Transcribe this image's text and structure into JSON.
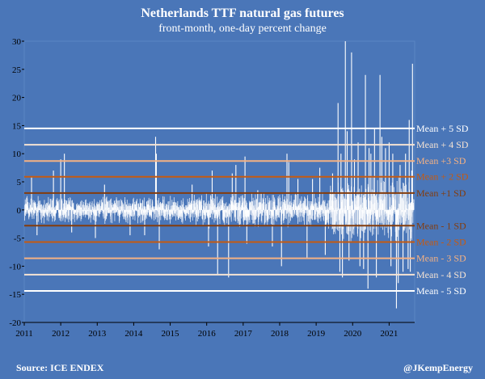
{
  "chart_data": {
    "type": "bar",
    "title": "Netherlands TTF natural gas futures",
    "subtitle": "front-month, one-day percent change",
    "xlabel": "",
    "ylabel": "",
    "xlim": [
      2011.0,
      2021.7
    ],
    "ylim": [
      -20,
      30
    ],
    "yticks": [
      -20,
      -15,
      -10,
      -5,
      0,
      5,
      10,
      15,
      20,
      25,
      30
    ],
    "xticks": [
      "2011",
      "2012",
      "2013",
      "2014",
      "2015",
      "2016",
      "2017",
      "2018",
      "2019",
      "2020",
      "2021"
    ],
    "grid": false,
    "series_color": "#ffffff",
    "reference_lines": [
      {
        "label": "Mean + 5 SD",
        "value": 14.5,
        "color": "#ffffff"
      },
      {
        "label": "Mean + 4 SD",
        "value": 11.6,
        "color": "#f5e3d3"
      },
      {
        "label": "Mean +3 SD",
        "value": 8.7,
        "color": "#f4b183"
      },
      {
        "label": "Mean + 2 SD",
        "value": 5.9,
        "color": "#c55a11"
      },
      {
        "label": "Mean +1 SD",
        "value": 3.0,
        "color": "#843c0c"
      },
      {
        "label": "Mean - 1 SD",
        "value": -2.8,
        "color": "#843c0c"
      },
      {
        "label": "Mean - 2 SD",
        "value": -5.7,
        "color": "#c55a11"
      },
      {
        "label": "Mean - 3 SD",
        "value": -8.6,
        "color": "#f4b183"
      },
      {
        "label": "Mean - 4 SD",
        "value": -11.5,
        "color": "#f5e3d3"
      },
      {
        "label": "Mean - 5 SD",
        "value": -14.4,
        "color": "#ffffff"
      }
    ],
    "notable_moves": [
      {
        "x": 2011.2,
        "y": 6.0
      },
      {
        "x": 2011.35,
        "y": -4.5
      },
      {
        "x": 2011.8,
        "y": 7.0
      },
      {
        "x": 2012.0,
        "y": 9.0
      },
      {
        "x": 2012.1,
        "y": 10.0
      },
      {
        "x": 2012.3,
        "y": -4.0
      },
      {
        "x": 2012.95,
        "y": -5.0
      },
      {
        "x": 2013.2,
        "y": 4.5
      },
      {
        "x": 2013.9,
        "y": -4.5
      },
      {
        "x": 2014.3,
        "y": -4.5
      },
      {
        "x": 2014.6,
        "y": 13.0
      },
      {
        "x": 2014.62,
        "y": 10.0
      },
      {
        "x": 2014.7,
        "y": -7.0
      },
      {
        "x": 2015.6,
        "y": 4.5
      },
      {
        "x": 2016.05,
        "y": -6.5
      },
      {
        "x": 2016.15,
        "y": 7.0
      },
      {
        "x": 2016.3,
        "y": -11.5
      },
      {
        "x": 2016.6,
        "y": -12.0
      },
      {
        "x": 2016.7,
        "y": 6.5
      },
      {
        "x": 2016.8,
        "y": 8.0
      },
      {
        "x": 2017.05,
        "y": 9.5
      },
      {
        "x": 2017.1,
        "y": -6.0
      },
      {
        "x": 2017.4,
        "y": 3.5
      },
      {
        "x": 2017.8,
        "y": -6.5
      },
      {
        "x": 2018.05,
        "y": -10.0
      },
      {
        "x": 2018.2,
        "y": 10.0
      },
      {
        "x": 2018.25,
        "y": 8.5
      },
      {
        "x": 2018.5,
        "y": 5.5
      },
      {
        "x": 2018.75,
        "y": -8.5
      },
      {
        "x": 2018.9,
        "y": 5.5
      },
      {
        "x": 2019.1,
        "y": 7.5
      },
      {
        "x": 2019.25,
        "y": -8.0
      },
      {
        "x": 2019.45,
        "y": 6.5
      },
      {
        "x": 2019.6,
        "y": 19.0
      },
      {
        "x": 2019.65,
        "y": -11.0
      },
      {
        "x": 2019.68,
        "y": 10.0
      },
      {
        "x": 2019.72,
        "y": -12.0
      },
      {
        "x": 2019.8,
        "y": 30.0
      },
      {
        "x": 2019.85,
        "y": 14.0
      },
      {
        "x": 2019.9,
        "y": -9.0
      },
      {
        "x": 2019.97,
        "y": 28.0
      },
      {
        "x": 2020.05,
        "y": 9.0
      },
      {
        "x": 2020.15,
        "y": 12.0
      },
      {
        "x": 2020.2,
        "y": -10.0
      },
      {
        "x": 2020.3,
        "y": -10.5
      },
      {
        "x": 2020.35,
        "y": 24.0
      },
      {
        "x": 2020.42,
        "y": -14.0
      },
      {
        "x": 2020.45,
        "y": 11.0
      },
      {
        "x": 2020.5,
        "y": 10.0
      },
      {
        "x": 2020.6,
        "y": 14.5
      },
      {
        "x": 2020.65,
        "y": -12.0
      },
      {
        "x": 2020.75,
        "y": 24.0
      },
      {
        "x": 2020.8,
        "y": 13.0
      },
      {
        "x": 2020.9,
        "y": 11.0
      },
      {
        "x": 2021.0,
        "y": 12.0
      },
      {
        "x": 2021.05,
        "y": -10.0
      },
      {
        "x": 2021.1,
        "y": 10.0
      },
      {
        "x": 2021.2,
        "y": -17.5
      },
      {
        "x": 2021.25,
        "y": -13.0
      },
      {
        "x": 2021.3,
        "y": 8.0
      },
      {
        "x": 2021.38,
        "y": -11.0
      },
      {
        "x": 2021.45,
        "y": 10.0
      },
      {
        "x": 2021.52,
        "y": -10.5
      },
      {
        "x": 2021.55,
        "y": 16.0
      },
      {
        "x": 2021.58,
        "y": -11.0
      },
      {
        "x": 2021.62,
        "y": 7.0
      },
      {
        "x": 2021.64,
        "y": 26.0
      }
    ]
  },
  "footer": {
    "source": "Source: ICE ENDEX",
    "credit": "@JKempEnergy"
  }
}
